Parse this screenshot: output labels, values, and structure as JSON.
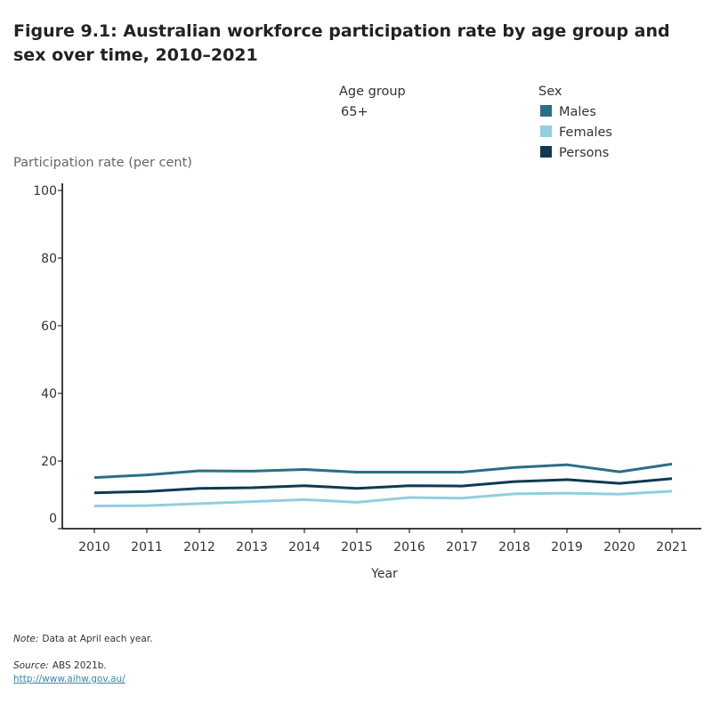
{
  "title": "Figure 9.1: Australian workforce participation rate by age group and sex over time, 2010–2021",
  "filters": {
    "age_group_label": "Age group",
    "age_group_value": "65+",
    "sex_label": "Sex"
  },
  "chart_data": {
    "type": "line",
    "xlabel": "Year",
    "ylabel": "Participation rate (per cent)",
    "ylim": [
      0,
      100
    ],
    "yticks": [
      0,
      20,
      40,
      60,
      80,
      100
    ],
    "x": [
      "2010",
      "2011",
      "2012",
      "2013",
      "2014",
      "2015",
      "2016",
      "2017",
      "2018",
      "2019",
      "2020",
      "2021"
    ],
    "grid": false,
    "legend_position": "top-right",
    "series": [
      {
        "name": "Males",
        "color": "#2a6f86",
        "values": [
          15.1,
          15.9,
          17.1,
          17.0,
          17.5,
          16.7,
          16.7,
          16.7,
          18.1,
          18.9,
          16.8,
          19.1
        ]
      },
      {
        "name": "Females",
        "color": "#90cfdd",
        "values": [
          6.7,
          6.8,
          7.4,
          8.0,
          8.6,
          7.8,
          9.2,
          9.0,
          10.3,
          10.5,
          10.2,
          11.1
        ]
      },
      {
        "name": "Persons",
        "color": "#0e3a52",
        "values": [
          10.6,
          11.0,
          11.9,
          12.1,
          12.7,
          11.9,
          12.7,
          12.6,
          13.9,
          14.5,
          13.4,
          14.8
        ]
      }
    ]
  },
  "footer": {
    "note_label": "Note:",
    "note_text": "Data at April each year.",
    "source_label": "Source:",
    "source_text": "ABS 2021b.",
    "link": "http://www.aihw.gov.au/"
  }
}
